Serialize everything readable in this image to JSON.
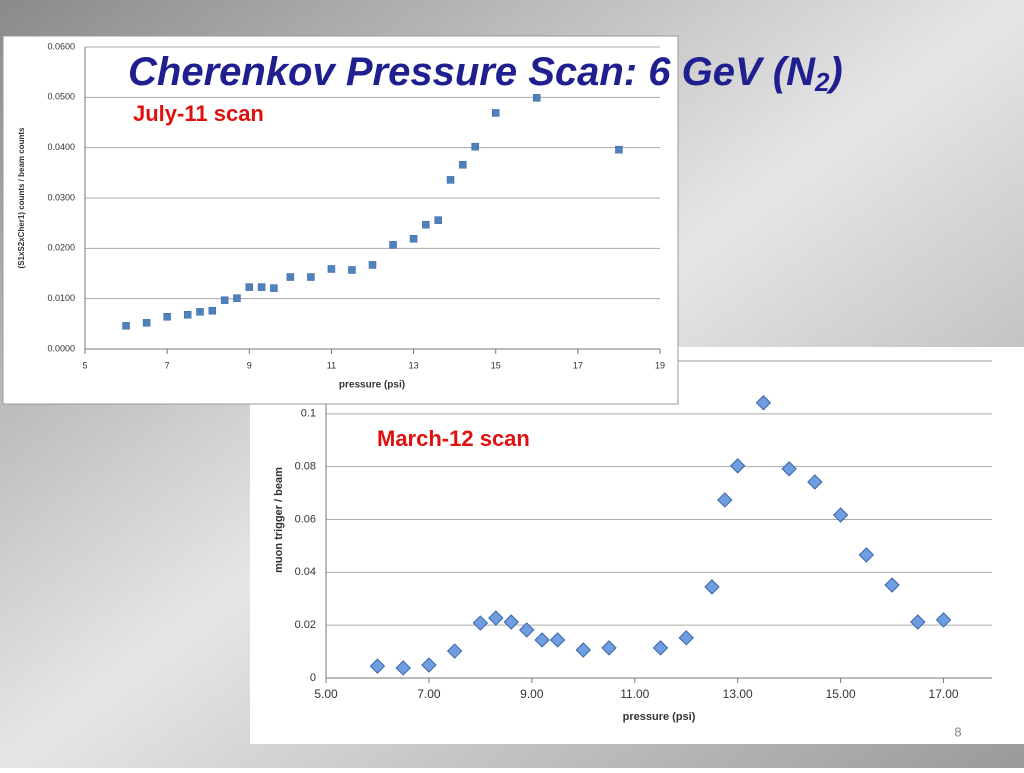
{
  "slide": {
    "title": "Cherenkov Pressure Scan: 6 GeV (N",
    "title_subscript": "2",
    "title_end": ")",
    "page_number": "8"
  },
  "chart_data": [
    {
      "type": "scatter",
      "annotation": "July-11 scan",
      "x_label": "pressure (psi)",
      "y_label": "(S1xS2xCher1) counts / beam counts",
      "xlim": [
        5,
        19
      ],
      "xticks": [
        5,
        7,
        9,
        11,
        13,
        15,
        17,
        19
      ],
      "ylim": [
        0,
        0.06
      ],
      "yticks": [
        {
          "value": 0,
          "label": "0.0000"
        },
        {
          "value": 0.01,
          "label": "0.0100"
        },
        {
          "value": 0.02,
          "label": "0.0200"
        },
        {
          "value": 0.03,
          "label": "0.0300"
        },
        {
          "value": 0.04,
          "label": "0.0400"
        },
        {
          "value": 0.05,
          "label": "0.0500"
        },
        {
          "value": 0.06,
          "label": "0.0600"
        }
      ],
      "grid": true,
      "series": [
        {
          "color": "#4f81bd",
          "marker": "square",
          "x": [
            6.0,
            6.5,
            7.0,
            7.5,
            7.8,
            8.1,
            8.4,
            8.7,
            9.0,
            9.3,
            9.6,
            10.0,
            10.5,
            11.0,
            11.5,
            12.0,
            12.5,
            13.0,
            13.3,
            13.6,
            13.9,
            14.2,
            14.5,
            15.0,
            16.0,
            18.0
          ],
          "values": [
            0.0046,
            0.0052,
            0.0064,
            0.0068,
            0.0074,
            0.0076,
            0.0097,
            0.0101,
            0.0123,
            0.0123,
            0.0121,
            0.0143,
            0.0143,
            0.0159,
            0.0157,
            0.0167,
            0.0207,
            0.0219,
            0.0247,
            0.0256,
            0.0336,
            0.0366,
            0.0402,
            0.0469,
            0.0499,
            0.0396
          ]
        }
      ]
    },
    {
      "type": "scatter",
      "annotation": "March-12 scan",
      "x_label": "pressure (psi)",
      "y_label": "muon trigger / beam",
      "xlim": [
        5,
        18
      ],
      "xticks": [
        {
          "value": 5,
          "label": "5.00"
        },
        {
          "value": 7,
          "label": "7.00"
        },
        {
          "value": 9,
          "label": "9.00"
        },
        {
          "value": 11,
          "label": "11.00"
        },
        {
          "value": 13,
          "label": "13.00"
        },
        {
          "value": 15,
          "label": "15.00"
        },
        {
          "value": 17,
          "label": "17.00"
        }
      ],
      "ylim": [
        0,
        0.12
      ],
      "yticks": [
        0,
        0.02,
        0.04,
        0.06,
        0.08,
        0.1
      ],
      "grid": true,
      "series": [
        {
          "color": "#6f9ee0",
          "marker": "diamond",
          "x": [
            6.0,
            6.5,
            7.0,
            7.5,
            8.0,
            8.3,
            8.6,
            8.9,
            9.2,
            9.5,
            10.0,
            10.5,
            11.5,
            12.0,
            12.5,
            12.75,
            13.0,
            13.5,
            14.0,
            14.5,
            15.0,
            15.5,
            16.0,
            16.5,
            17.0
          ],
          "values": [
            0.0045,
            0.0038,
            0.0049,
            0.0102,
            0.0208,
            0.0227,
            0.0212,
            0.0182,
            0.0144,
            0.0144,
            0.0106,
            0.0114,
            0.0114,
            0.0152,
            0.0345,
            0.0674,
            0.0803,
            0.1042,
            0.0792,
            0.0742,
            0.0617,
            0.0466,
            0.0352,
            0.0212,
            0.022
          ]
        }
      ]
    }
  ]
}
